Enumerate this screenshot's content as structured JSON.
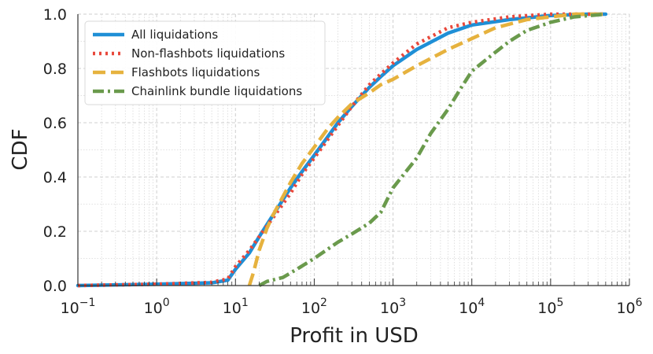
{
  "chart_data": {
    "type": "line",
    "title": "",
    "xlabel": "Profit in USD",
    "ylabel": "CDF",
    "xscale": "log",
    "xlim": [
      0.1,
      1000000
    ],
    "ylim": [
      0.0,
      1.0
    ],
    "grid": true,
    "legend_position": "top-left",
    "x_ticks": [
      {
        "base": "10",
        "exp": "−1"
      },
      {
        "base": "10",
        "exp": "0"
      },
      {
        "base": "10",
        "exp": "1"
      },
      {
        "base": "10",
        "exp": "2"
      },
      {
        "base": "10",
        "exp": "3"
      },
      {
        "base": "10",
        "exp": "4"
      },
      {
        "base": "10",
        "exp": "5"
      },
      {
        "base": "10",
        "exp": "6"
      }
    ],
    "y_ticks": [
      "0.0",
      "0.2",
      "0.4",
      "0.6",
      "0.8",
      "1.0"
    ],
    "series": [
      {
        "name": "All liquidations",
        "color": "#1f8fd6",
        "dash": "solid",
        "points": [
          [
            0.1,
            0.0
          ],
          [
            1,
            0.005
          ],
          [
            5,
            0.01
          ],
          [
            8,
            0.02
          ],
          [
            10,
            0.06
          ],
          [
            15,
            0.12
          ],
          [
            20,
            0.18
          ],
          [
            30,
            0.26
          ],
          [
            50,
            0.36
          ],
          [
            70,
            0.42
          ],
          [
            100,
            0.48
          ],
          [
            150,
            0.55
          ],
          [
            200,
            0.6
          ],
          [
            300,
            0.66
          ],
          [
            500,
            0.73
          ],
          [
            700,
            0.77
          ],
          [
            1000,
            0.81
          ],
          [
            2000,
            0.87
          ],
          [
            5000,
            0.93
          ],
          [
            10000,
            0.96
          ],
          [
            30000,
            0.98
          ],
          [
            100000,
            0.995
          ],
          [
            300000,
            1.0
          ],
          [
            500000,
            1.0
          ]
        ]
      },
      {
        "name": "Non-flashbots liquidations",
        "color": "#e8483b",
        "dash": "dotted",
        "points": [
          [
            0.1,
            0.0
          ],
          [
            1,
            0.005
          ],
          [
            5,
            0.012
          ],
          [
            8,
            0.025
          ],
          [
            10,
            0.07
          ],
          [
            15,
            0.13
          ],
          [
            20,
            0.18
          ],
          [
            30,
            0.25
          ],
          [
            50,
            0.34
          ],
          [
            70,
            0.41
          ],
          [
            100,
            0.47
          ],
          [
            150,
            0.54
          ],
          [
            200,
            0.59
          ],
          [
            300,
            0.66
          ],
          [
            500,
            0.74
          ],
          [
            700,
            0.78
          ],
          [
            1000,
            0.82
          ],
          [
            2000,
            0.89
          ],
          [
            5000,
            0.95
          ],
          [
            10000,
            0.97
          ],
          [
            30000,
            0.99
          ],
          [
            100000,
            1.0
          ],
          [
            500000,
            1.0
          ]
        ]
      },
      {
        "name": "Flashbots liquidations",
        "color": "#e6b23e",
        "dash": "dashed",
        "points": [
          [
            15,
            0.0
          ],
          [
            17,
            0.05
          ],
          [
            20,
            0.13
          ],
          [
            25,
            0.21
          ],
          [
            30,
            0.26
          ],
          [
            50,
            0.38
          ],
          [
            70,
            0.45
          ],
          [
            100,
            0.51
          ],
          [
            150,
            0.58
          ],
          [
            200,
            0.62
          ],
          [
            300,
            0.67
          ],
          [
            500,
            0.71
          ],
          [
            700,
            0.74
          ],
          [
            1000,
            0.76
          ],
          [
            2000,
            0.81
          ],
          [
            5000,
            0.87
          ],
          [
            10000,
            0.91
          ],
          [
            20000,
            0.95
          ],
          [
            50000,
            0.98
          ],
          [
            100000,
            0.99
          ],
          [
            200000,
            1.0
          ],
          [
            500000,
            1.0
          ]
        ]
      },
      {
        "name": "Chainlink bundle liquidations",
        "color": "#6a9a4c",
        "dash": "dashdot",
        "points": [
          [
            20,
            0.0
          ],
          [
            25,
            0.015
          ],
          [
            40,
            0.03
          ],
          [
            60,
            0.06
          ],
          [
            100,
            0.1
          ],
          [
            200,
            0.16
          ],
          [
            300,
            0.19
          ],
          [
            500,
            0.23
          ],
          [
            700,
            0.27
          ],
          [
            1000,
            0.36
          ],
          [
            2000,
            0.47
          ],
          [
            3000,
            0.56
          ],
          [
            5000,
            0.65
          ],
          [
            7000,
            0.72
          ],
          [
            10000,
            0.79
          ],
          [
            20000,
            0.86
          ],
          [
            30000,
            0.9
          ],
          [
            50000,
            0.94
          ],
          [
            100000,
            0.97
          ],
          [
            200000,
            0.99
          ],
          [
            500000,
            1.0
          ]
        ]
      }
    ]
  }
}
